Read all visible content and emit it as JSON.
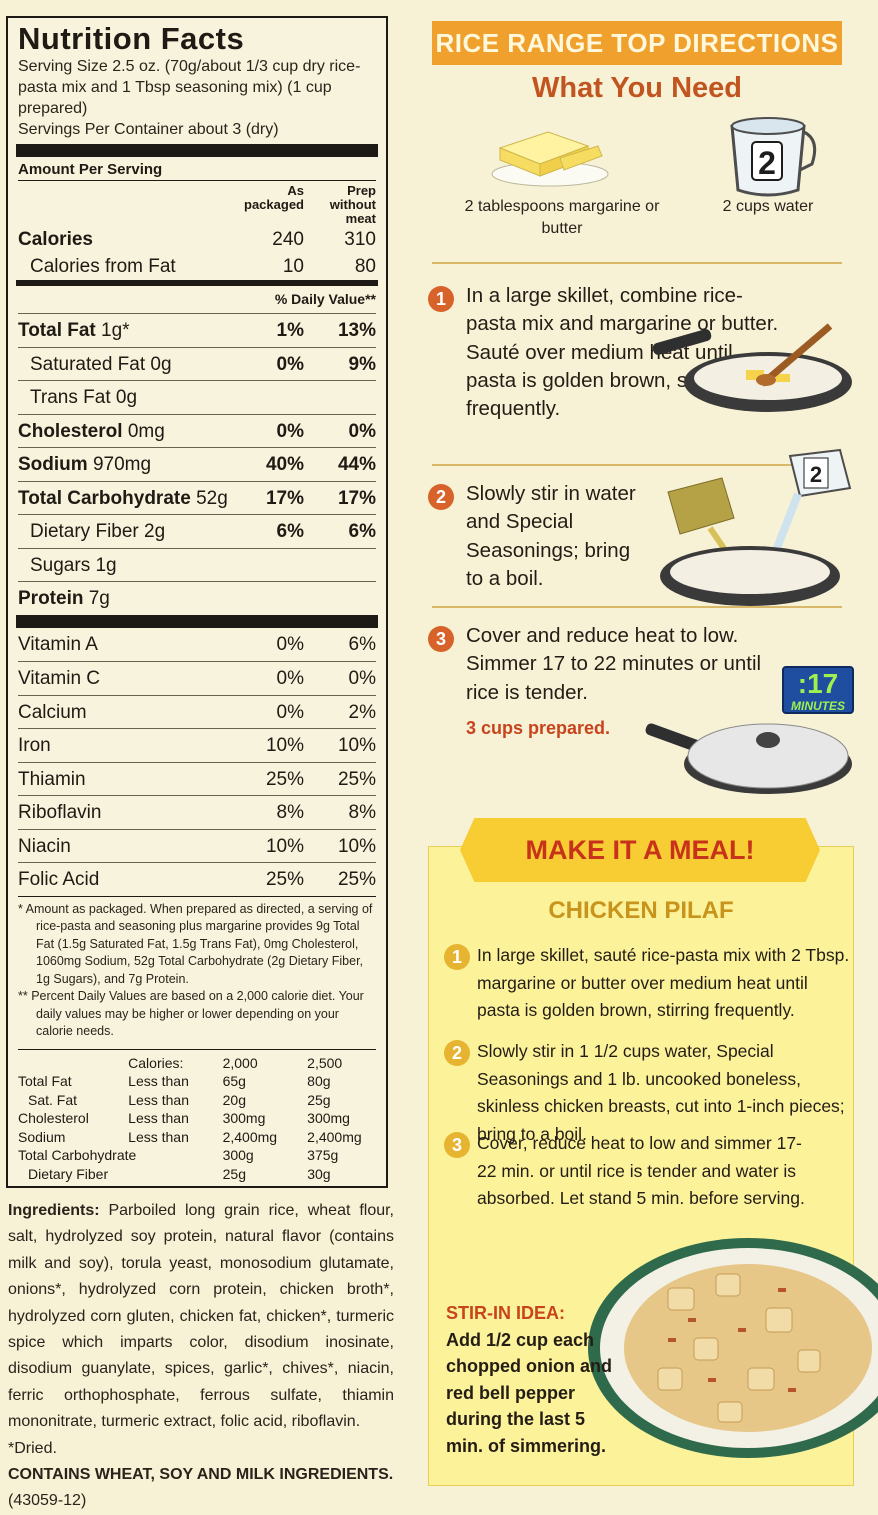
{
  "nutrition": {
    "title": "Nutrition Facts",
    "serving_size": "Serving Size 2.5 oz. (70g/about 1/3 cup dry rice-pasta mix and 1 Tbsp seasoning mix) (1 cup prepared)",
    "servings_per_container": "Servings Per Container about 3 (dry)",
    "amount_per_serving": "Amount Per Serving",
    "col1_head": "As packaged",
    "col2_head": "Prep without meat",
    "calories": {
      "label": "Calories",
      "v1": "240",
      "v2": "310"
    },
    "calories_fat": {
      "label": "Calories from Fat",
      "v1": "10",
      "v2": "80"
    },
    "dv_head": "% Daily Value**",
    "nutrients": [
      {
        "label": "Total Fat",
        "amount": "1g*",
        "v1": "1%",
        "v2": "13%"
      },
      {
        "label": "Saturated Fat 0g",
        "amount": "",
        "v1": "0%",
        "v2": "9%"
      },
      {
        "label": "Trans Fat 0g",
        "amount": "",
        "v1": "",
        "v2": ""
      },
      {
        "label": "Cholesterol",
        "amount": "0mg",
        "v1": "0%",
        "v2": "0%"
      },
      {
        "label": "Sodium",
        "amount": "970mg",
        "v1": "40%",
        "v2": "44%"
      },
      {
        "label": "Total Carbohydrate",
        "amount": "52g",
        "v1": "17%",
        "v2": "17%"
      },
      {
        "label": "Dietary Fiber 2g",
        "amount": "",
        "v1": "6%",
        "v2": "6%"
      },
      {
        "label": "Sugars 1g",
        "amount": "",
        "v1": "",
        "v2": ""
      },
      {
        "label": "Protein",
        "amount": "7g",
        "v1": "",
        "v2": ""
      }
    ],
    "vitamins": [
      {
        "label": "Vitamin A",
        "v1": "0%",
        "v2": "6%"
      },
      {
        "label": "Vitamin C",
        "v1": "0%",
        "v2": "0%"
      },
      {
        "label": "Calcium",
        "v1": "0%",
        "v2": "2%"
      },
      {
        "label": "Iron",
        "v1": "10%",
        "v2": "10%"
      },
      {
        "label": "Thiamin",
        "v1": "25%",
        "v2": "25%"
      },
      {
        "label": "Riboflavin",
        "v1": "8%",
        "v2": "8%"
      },
      {
        "label": "Niacin",
        "v1": "10%",
        "v2": "10%"
      },
      {
        "label": "Folic Acid",
        "v1": "25%",
        "v2": "25%"
      }
    ],
    "footnote1": "* Amount as packaged. When prepared as directed, a serving of rice-pasta and seasoning plus margarine provides 9g Total Fat (1.5g Saturated Fat, 1.5g Trans Fat), 0mg Cholesterol, 1060mg Sodium, 52g Total Carbohydrate (2g Dietary Fiber, 1g Sugars), and 7g Protein.",
    "footnote2": "** Percent Daily Values are based on a 2,000 calorie diet. Your daily values may be higher or lower depending on your calorie needs.",
    "dv_table": {
      "head": [
        "",
        "Calories:",
        "2,000",
        "2,500"
      ],
      "rows": [
        [
          "Total Fat",
          "Less than",
          "65g",
          "80g"
        ],
        [
          "Sat. Fat",
          "Less than",
          "20g",
          "25g"
        ],
        [
          "Cholesterol",
          "Less than",
          "300mg",
          "300mg"
        ],
        [
          "Sodium",
          "Less than",
          "2,400mg",
          "2,400mg"
        ],
        [
          "Total Carbohydrate",
          "",
          "300g",
          "375g"
        ],
        [
          "Dietary Fiber",
          "",
          "25g",
          "30g"
        ]
      ]
    }
  },
  "ingredients": {
    "label": "Ingredients:",
    "text": "Parboiled long grain rice, wheat flour, salt, hydrolyzed soy protein, natural flavor (contains milk and soy), torula yeast, monosodium glutamate, onions*, hydrolyzed corn protein, chicken broth*, hydrolyzed corn gluten, chicken fat, chicken*, turmeric spice which imparts color, disodium inosinate, disodium guanylate, spices, garlic*, chives*, niacin, ferric orthophosphate, ferrous sulfate, thiamin mononitrate, turmeric extract, folic acid, riboflavin.",
    "dried": "*Dried.",
    "contains": "CONTAINS WHEAT, SOY AND MILK INGREDIENTS.",
    "code": "(43059-12)"
  },
  "directions": {
    "banner": "RICE RANGE TOP DIRECTIONS",
    "need_title": "What You Need",
    "need_butter": "2 tablespoons margarine or butter",
    "need_water": "2 cups water",
    "cup_number": "2",
    "steps": [
      "In a large skillet, combine rice-pasta mix and margarine or butter. Sauté over medium heat until pasta is golden brown, stirring frequently.",
      "Slowly stir in water and Special Seasonings; bring to a boil.",
      "Cover and reduce heat to low. Simmer 17 to 22 minutes or until rice is tender."
    ],
    "yield": "3 cups prepared.",
    "timer_value": ":17",
    "timer_unit": "MINUTES"
  },
  "meal": {
    "banner": "MAKE IT A MEAL!",
    "title": "CHICKEN PILAF",
    "steps": [
      "In large skillet, sauté rice-pasta mix with 2 Tbsp. margarine or butter over medium heat until pasta is golden brown, stirring frequently.",
      "Slowly stir in 1 1/2 cups water, Special Seasonings and 1 lb. uncooked boneless, skinless chicken breasts, cut into 1-inch pieces; bring to a boil.",
      "Cover, reduce heat to low and simmer 17-22 min. or until rice is tender and water is absorbed. Let stand 5 min. before serving."
    ],
    "stir_in_title": "STIR-IN IDEA:",
    "stir_in_text": "Add 1/2 cup each chopped onion and red bell pepper during the last 5 min. of simmering."
  },
  "colors": {
    "banner_orange": "#f0a12d",
    "step_orange": "#d8632a",
    "accent_red": "#c2541f",
    "meal_yellow": "#fbf29a",
    "timer_blue": "#1f4ea0"
  },
  "icons": [
    "butter-icon",
    "measuring-cup-icon",
    "skillet-icon",
    "seasoning-packet-icon",
    "covered-skillet-icon",
    "timer-icon",
    "pilaf-plate-icon"
  ]
}
